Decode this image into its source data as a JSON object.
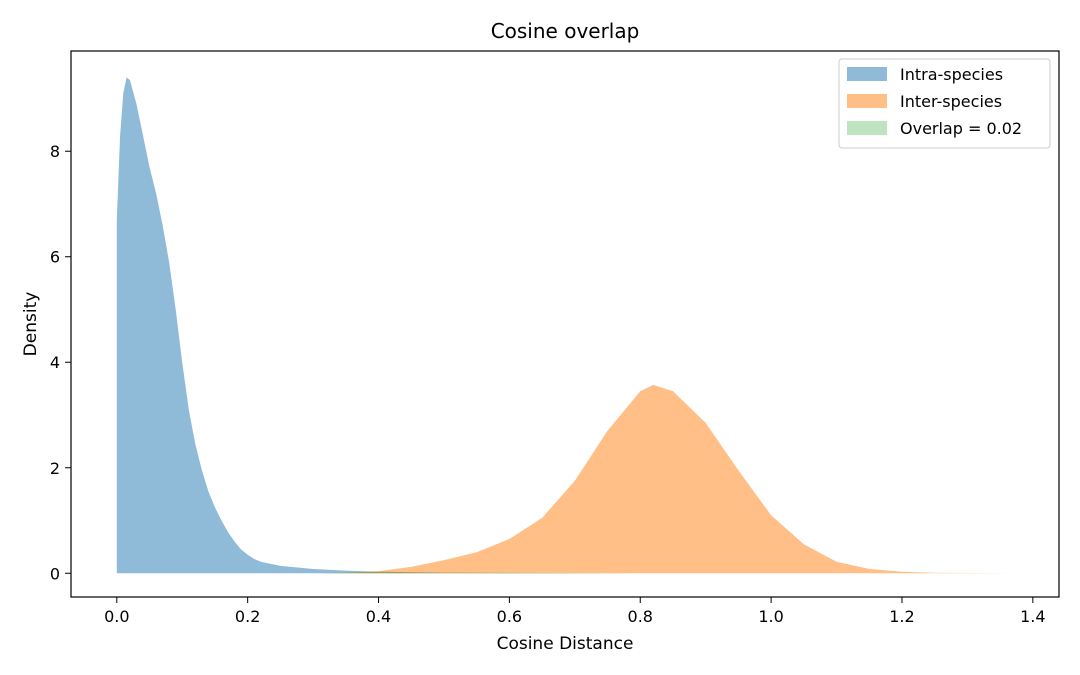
{
  "chart_data": {
    "type": "area",
    "title": "Cosine overlap",
    "xlabel": "Cosine Distance",
    "ylabel": "Density",
    "xlim": [
      -0.07,
      1.44
    ],
    "ylim": [
      -0.45,
      9.9
    ],
    "xticks": [
      0.0,
      0.2,
      0.4,
      0.6,
      0.8,
      1.0,
      1.2,
      1.4
    ],
    "xtick_labels": [
      "0.0",
      "0.2",
      "0.4",
      "0.6",
      "0.8",
      "1.0",
      "1.2",
      "1.4"
    ],
    "yticks": [
      0,
      2,
      4,
      6,
      8
    ],
    "ytick_labels": [
      "0",
      "2",
      "4",
      "6",
      "8"
    ],
    "grid": false,
    "legend_position": "top-right",
    "series": [
      {
        "name": "Intra-species",
        "color": "#1f77b4",
        "alpha": 0.5,
        "x": [
          0.0,
          0.005,
          0.01,
          0.015,
          0.02,
          0.03,
          0.04,
          0.05,
          0.06,
          0.07,
          0.08,
          0.09,
          0.1,
          0.11,
          0.12,
          0.13,
          0.14,
          0.15,
          0.16,
          0.17,
          0.18,
          0.19,
          0.2,
          0.21,
          0.22,
          0.25,
          0.3,
          0.35,
          0.4,
          0.45,
          0.5,
          0.6,
          0.7,
          0.8
        ],
        "values": [
          6.7,
          8.3,
          9.1,
          9.4,
          9.35,
          8.9,
          8.3,
          7.7,
          7.2,
          6.6,
          5.9,
          5.0,
          4.0,
          3.1,
          2.45,
          1.95,
          1.55,
          1.25,
          1.0,
          0.78,
          0.6,
          0.45,
          0.35,
          0.27,
          0.22,
          0.14,
          0.08,
          0.05,
          0.03,
          0.02,
          0.012,
          0.006,
          0.003,
          0.0
        ]
      },
      {
        "name": "Inter-species",
        "color": "#ff7f0e",
        "alpha": 0.5,
        "x": [
          0.3,
          0.35,
          0.4,
          0.45,
          0.5,
          0.55,
          0.6,
          0.65,
          0.7,
          0.75,
          0.8,
          0.82,
          0.85,
          0.9,
          0.95,
          1.0,
          1.05,
          1.1,
          1.15,
          1.2,
          1.25,
          1.3,
          1.38
        ],
        "values": [
          0.0,
          0.01,
          0.04,
          0.12,
          0.25,
          0.4,
          0.65,
          1.05,
          1.75,
          2.7,
          3.45,
          3.57,
          3.45,
          2.85,
          1.95,
          1.1,
          0.55,
          0.22,
          0.08,
          0.03,
          0.01,
          0.004,
          0.0
        ]
      },
      {
        "name": "Overlap = 0.02",
        "color": "#2ca02c",
        "alpha": 0.3,
        "x": [
          0.3,
          0.35,
          0.4,
          0.45,
          0.5,
          0.55,
          0.6,
          0.65,
          0.7,
          0.75,
          0.8
        ],
        "values": [
          0.0,
          0.01,
          0.03,
          0.02,
          0.012,
          0.008,
          0.007,
          0.005,
          0.004,
          0.003,
          0.0
        ]
      }
    ]
  }
}
